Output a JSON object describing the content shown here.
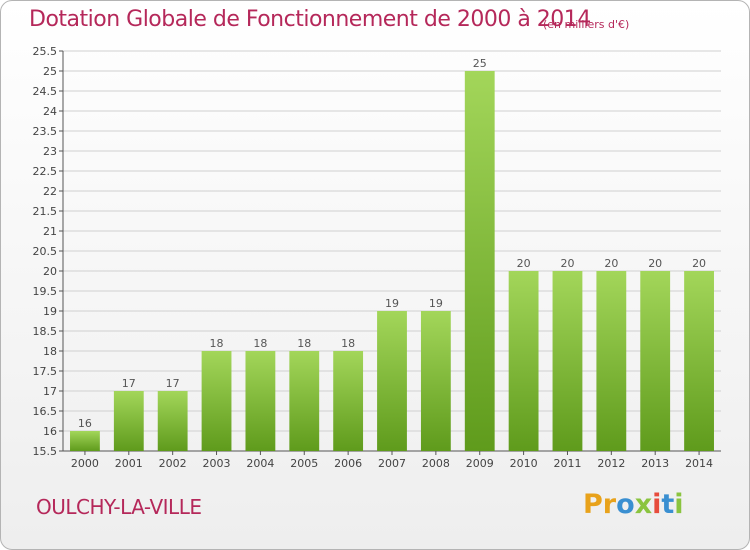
{
  "header": {
    "title": "Dotation Globale de Fonctionnement de 2000 à 2014",
    "unit": "(en milliers d'€)"
  },
  "footer": {
    "commune": "OULCHY-LA-VILLE",
    "logo_letters": [
      "P",
      "r",
      "o",
      "x",
      "i",
      "t",
      "i"
    ],
    "logo_colors": [
      "#e8a21b",
      "#e8a21b",
      "#3a8fd1",
      "#8ac43f",
      "#e74c3c",
      "#3a8fd1",
      "#8ac43f"
    ]
  },
  "colors": {
    "title": "#b5285a",
    "bar_top": "#a3d65a",
    "bar_bottom": "#5f9b1c",
    "grid": "#d0d0d0",
    "axis": "#555555"
  },
  "chart_data": {
    "type": "bar",
    "title": "Dotation Globale de Fonctionnement de 2000 à 2014",
    "subtitle": "(en milliers d'€)",
    "xlabel": "",
    "ylabel": "",
    "categories": [
      "2000",
      "2001",
      "2002",
      "2003",
      "2004",
      "2005",
      "2006",
      "2007",
      "2008",
      "2009",
      "2010",
      "2011",
      "2012",
      "2013",
      "2014"
    ],
    "values": [
      16,
      17,
      17,
      18,
      18,
      18,
      18,
      19,
      19,
      25,
      20,
      20,
      20,
      20,
      20
    ],
    "ylim": [
      15.5,
      25.5
    ],
    "yticks": [
      15.5,
      16,
      16.5,
      17,
      17.5,
      18,
      18.5,
      19,
      19.5,
      20,
      20.5,
      21,
      21.5,
      22,
      22.5,
      23,
      23.5,
      24,
      24.5,
      25,
      25.5
    ],
    "grid": true,
    "legend": "none"
  }
}
